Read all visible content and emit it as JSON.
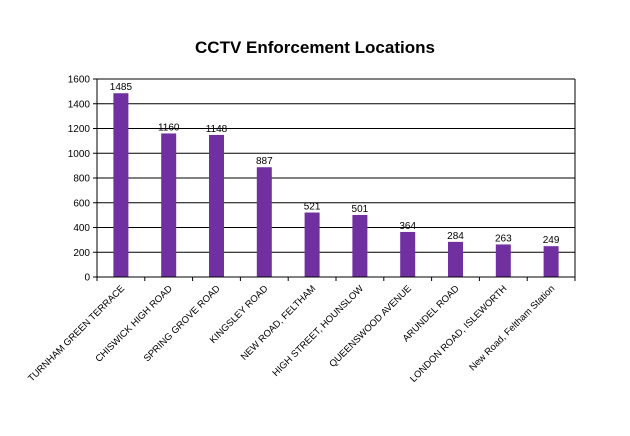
{
  "chart_data": {
    "type": "bar",
    "title": "CCTV Enforcement Locations",
    "categories": [
      "TURNHAM GREEN TERRACE",
      "CHISWICK HIGH ROAD",
      "SPRING GROVE ROAD",
      "KINGSLEY ROAD",
      "NEW ROAD, FELTHAM",
      "HIGH STREET, HOUNSLOW",
      "QUEENSWOOD AVENUE",
      "ARUNDEL ROAD",
      "LONDON ROAD, ISLEWORTH",
      "New Road, Feltham Station"
    ],
    "values": [
      1485,
      1160,
      1148,
      887,
      521,
      501,
      364,
      284,
      263,
      249
    ],
    "ylim": [
      0,
      1600
    ],
    "yticks": [
      0,
      200,
      400,
      600,
      800,
      1000,
      1200,
      1400,
      1600
    ],
    "grid": true,
    "bar_color": "#7030a0"
  }
}
